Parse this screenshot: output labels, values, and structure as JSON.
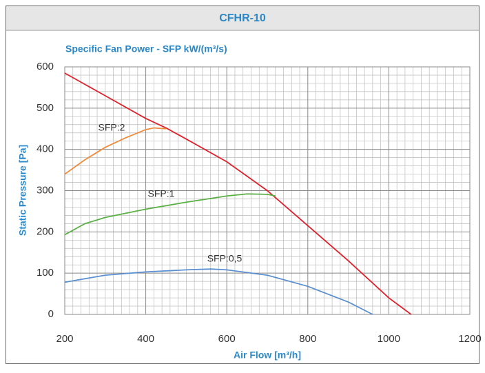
{
  "chart_data": {
    "type": "line",
    "title": "CFHR-10",
    "subtitle": "Specific Fan Power - SFP kW/(m³/s)",
    "x_label": "Air Flow [m³/h]",
    "y_label": "Static Pressure [Pa]",
    "xlim": [
      200,
      1200
    ],
    "xticks": [
      200,
      400,
      600,
      800,
      1000,
      1200
    ],
    "ylim": [
      0,
      600
    ],
    "yticks": [
      0,
      100,
      200,
      300,
      400,
      500,
      600
    ],
    "grid": true,
    "series": [
      {
        "color": "#e0202a",
        "x": [
          200,
          300,
          400,
          450,
          500,
          600,
          700,
          800,
          900,
          1000,
          1055
        ],
        "values": [
          585,
          530,
          475,
          452,
          425,
          370,
          300,
          215,
          130,
          40,
          0
        ]
      },
      {
        "name": "SFP:2",
        "color": "#f08a3a",
        "x": [
          200,
          250,
          300,
          350,
          400,
          420,
          450
        ],
        "values": [
          340,
          375,
          405,
          428,
          448,
          452,
          450
        ]
      },
      {
        "name": "SFP:1",
        "color": "#5ab045",
        "x": [
          200,
          250,
          300,
          400,
          500,
          600,
          650,
          700,
          720
        ],
        "values": [
          193,
          220,
          235,
          255,
          272,
          287,
          292,
          291,
          287
        ]
      },
      {
        "name": "SFP:0,5",
        "color": "#5a8fd0",
        "x": [
          200,
          300,
          400,
          500,
          560,
          600,
          700,
          800,
          900,
          960
        ],
        "values": [
          78,
          95,
          103,
          108,
          110,
          108,
          95,
          68,
          30,
          0
        ]
      }
    ]
  }
}
